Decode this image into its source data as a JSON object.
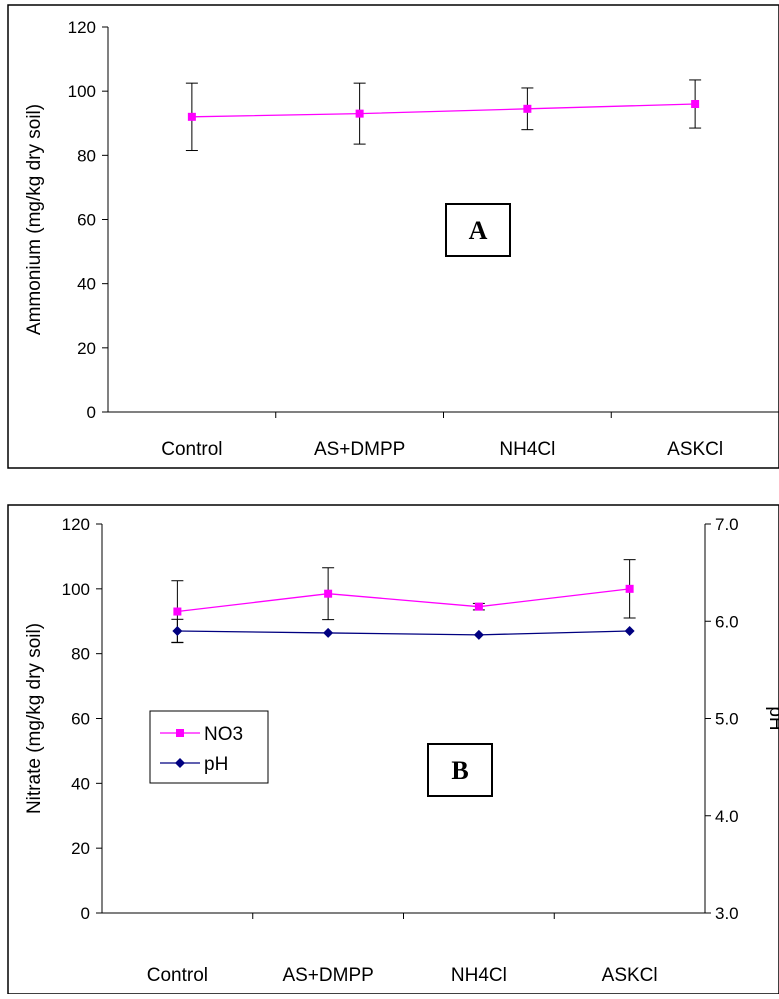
{
  "chart_data": [
    {
      "type": "line",
      "panel_label": "A",
      "categories": [
        "Control",
        "AS+DMPP",
        "NH4Cl",
        "ASKCl"
      ],
      "ylabel": "Ammonium (mg/kg dry soil)",
      "ylim": [
        0,
        120
      ],
      "yticks": [
        "0",
        "20",
        "40",
        "60",
        "80",
        "100",
        "120"
      ],
      "grid": false,
      "legend": "none",
      "series": [
        {
          "values": [
            92,
            93,
            94.5,
            96
          ],
          "error": [
            10.5,
            9.5,
            6.5,
            7.5
          ],
          "color": "#ff00ff",
          "marker": "square"
        }
      ]
    },
    {
      "type": "line",
      "panel_label": "B",
      "categories": [
        "Control",
        "AS+DMPP",
        "NH4Cl",
        "ASKCl"
      ],
      "ylabel": "Nitrate (mg/kg dry soil)",
      "ylabel_right": "pH",
      "ylim": [
        0,
        120
      ],
      "ylim_right": [
        3.0,
        7.0
      ],
      "yticks": [
        "0",
        "20",
        "40",
        "60",
        "80",
        "100",
        "120"
      ],
      "yticks_right": [
        "3.0",
        "4.0",
        "5.0",
        "6.0",
        "7.0"
      ],
      "grid": false,
      "legend": "left-bottom",
      "series": [
        {
          "name": "NO3",
          "axis": "left",
          "values": [
            93,
            98.5,
            94.5,
            100
          ],
          "error": [
            9.5,
            8,
            1,
            9
          ],
          "color": "#ff00ff",
          "marker": "square"
        },
        {
          "name": "pH",
          "axis": "right",
          "values": [
            5.9,
            5.88,
            5.86,
            5.9
          ],
          "error": [
            0.12,
            0,
            0,
            0
          ],
          "color": "#000080",
          "marker": "diamond"
        }
      ]
    }
  ]
}
